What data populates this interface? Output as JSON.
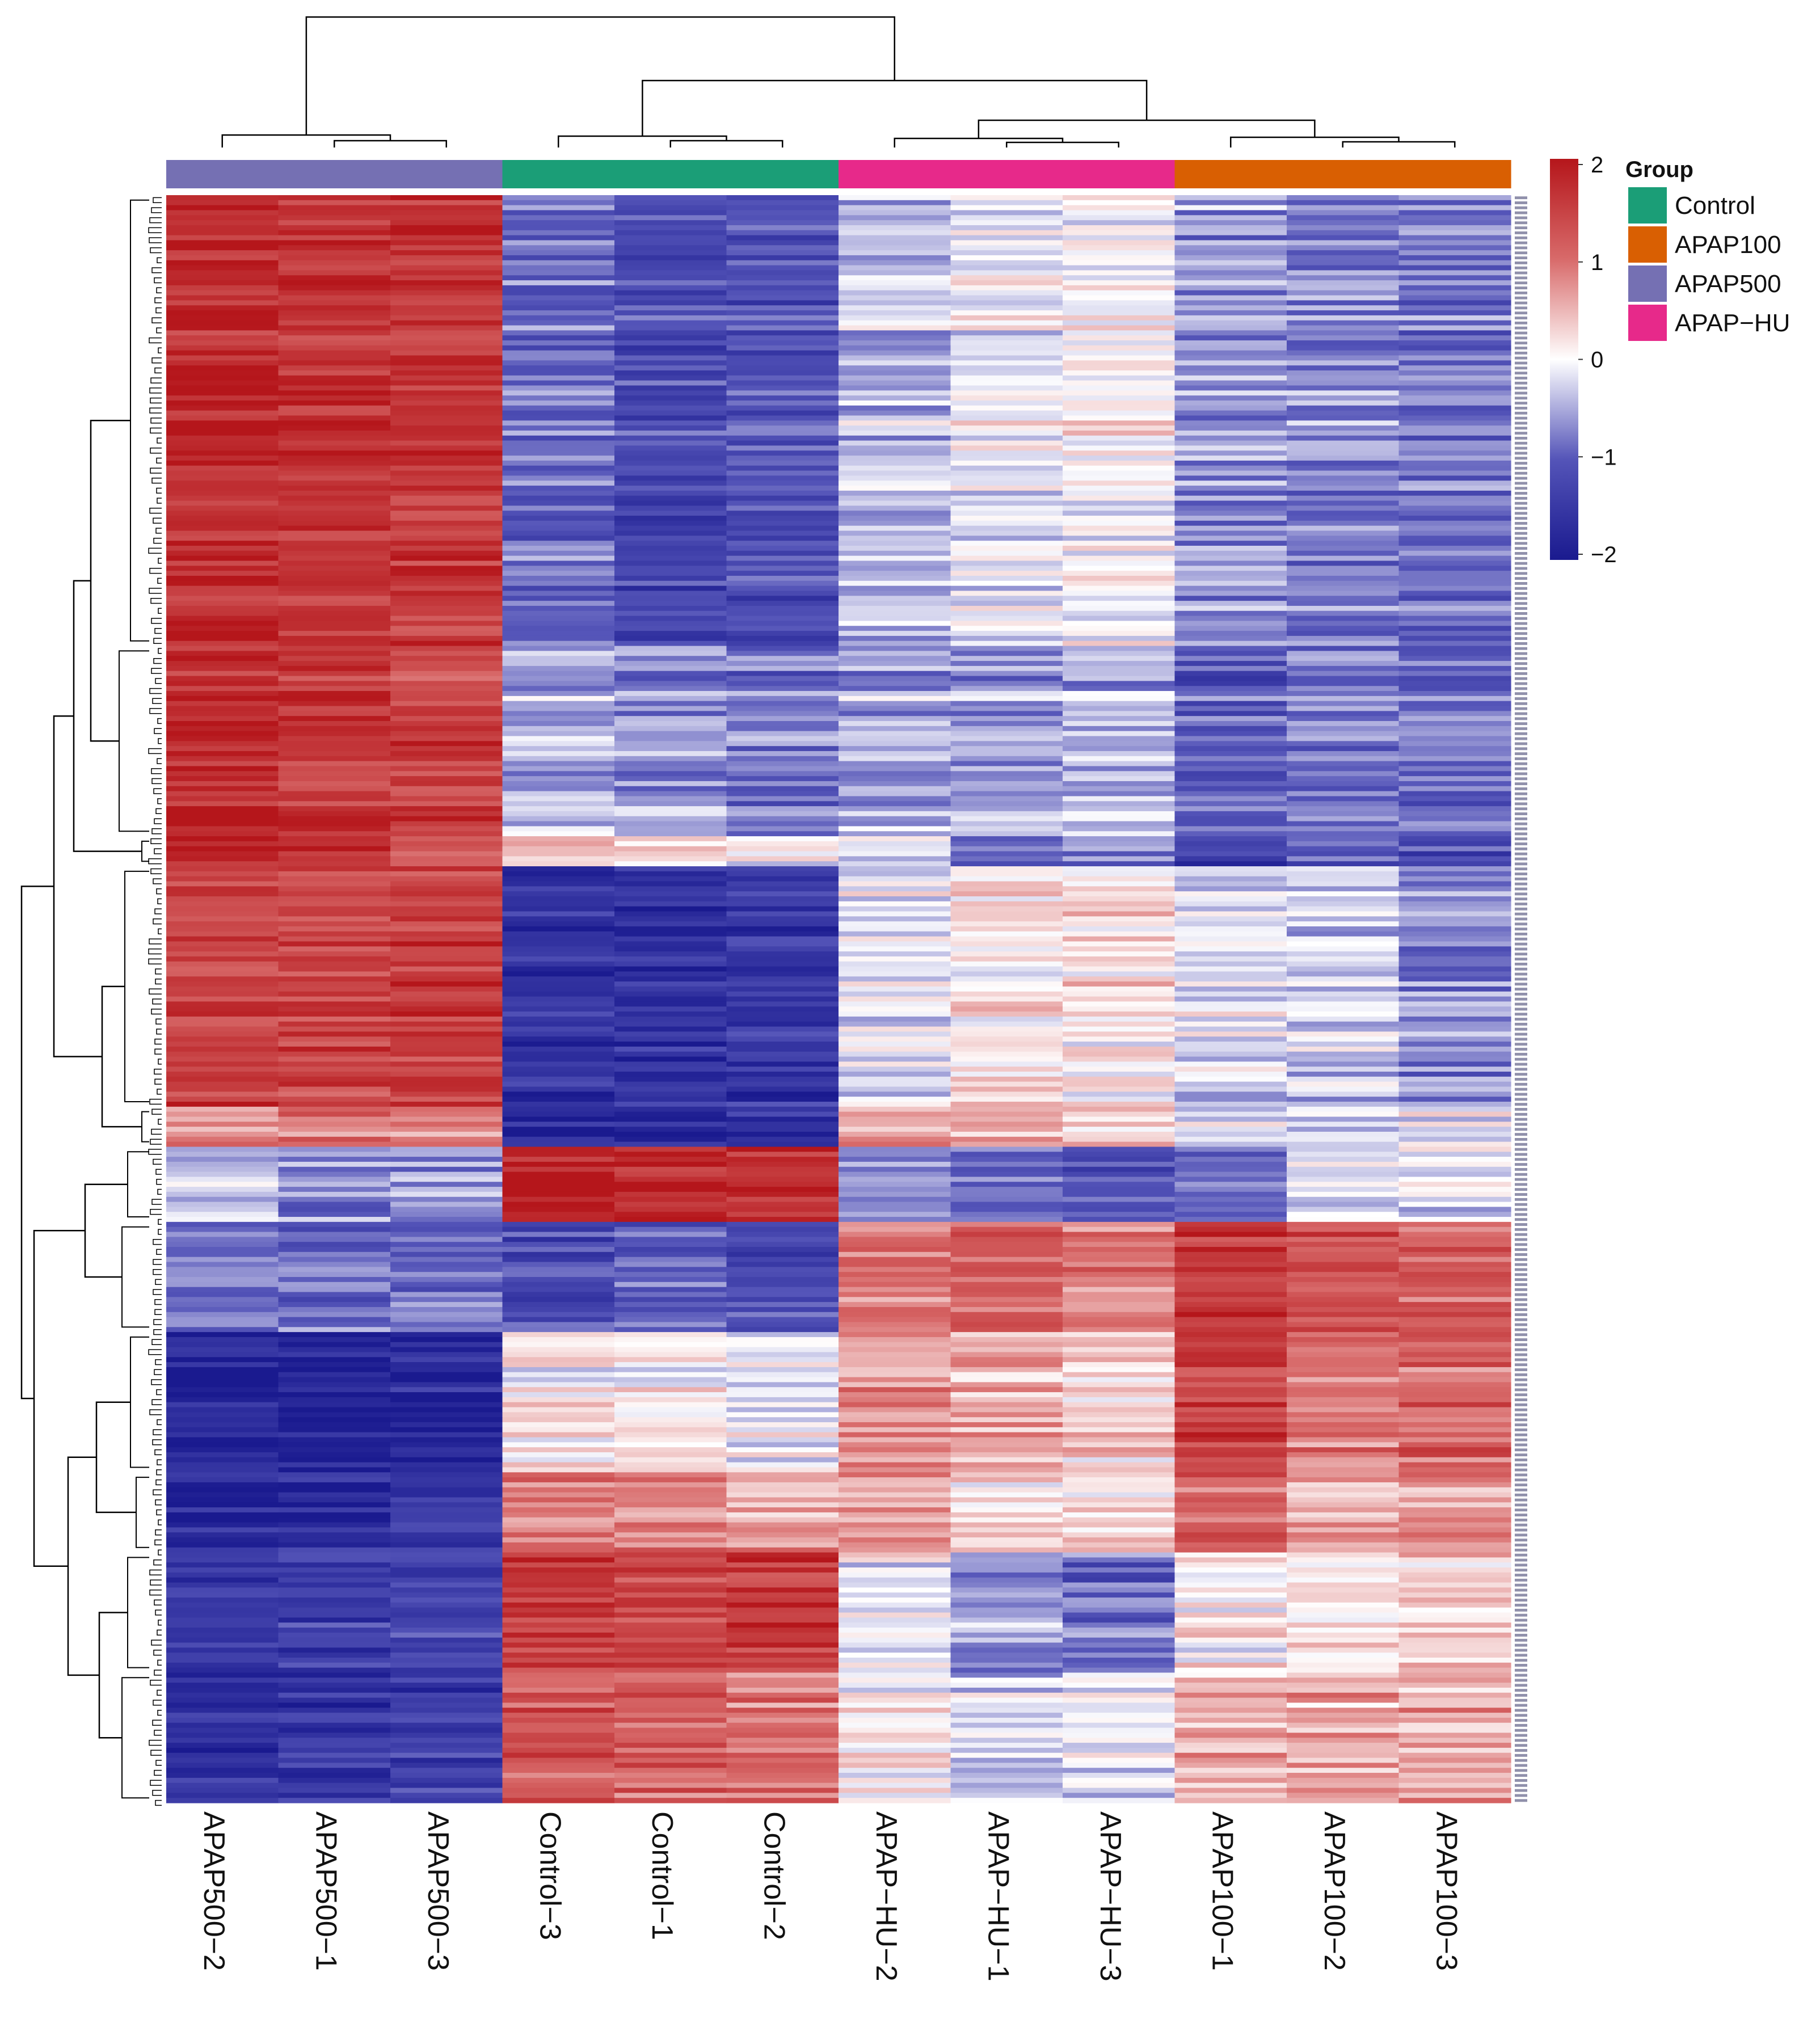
{
  "chart_data": {
    "type": "heatmap",
    "title": "",
    "columns": [
      "APAP500−2",
      "APAP500−1",
      "APAP500−3",
      "Control−3",
      "Control−1",
      "Control−2",
      "APAP−HU−2",
      "APAP−HU−1",
      "APAP−HU−3",
      "APAP100−1",
      "APAP100−2",
      "APAP100−3"
    ],
    "column_groups": [
      "APAP500",
      "APAP500",
      "APAP500",
      "Control",
      "Control",
      "Control",
      "APAP−HU",
      "APAP−HU",
      "APAP−HU",
      "APAP100",
      "APAP100",
      "APAP100"
    ],
    "row_blocks": [
      {
        "rows": 90,
        "values": [
          1.8,
          1.6,
          1.6,
          -0.9,
          -1.2,
          -1.1,
          -0.4,
          -0.1,
          0.0,
          -0.6,
          -0.7,
          -0.8
        ]
      },
      {
        "rows": 38,
        "values": [
          1.8,
          1.6,
          1.5,
          -0.5,
          -0.6,
          -0.8,
          -0.5,
          -0.6,
          -0.4,
          -1.0,
          -0.8,
          -0.8
        ]
      },
      {
        "rows": 6,
        "values": [
          1.6,
          1.5,
          1.3,
          0.4,
          0.3,
          0.1,
          -0.3,
          -0.9,
          -0.8,
          -1.3,
          -1.0,
          -1.2
        ]
      },
      {
        "rows": 48,
        "values": [
          1.5,
          1.4,
          1.5,
          -1.5,
          -1.6,
          -1.5,
          -0.1,
          0.2,
          0.2,
          -0.2,
          -0.3,
          -0.7
        ]
      },
      {
        "rows": 8,
        "values": [
          0.7,
          0.9,
          0.8,
          -1.8,
          -1.9,
          -1.7,
          0.5,
          0.5,
          0.3,
          -0.3,
          -0.2,
          -0.2
        ]
      },
      {
        "rows": 15,
        "values": [
          -0.4,
          -0.7,
          -0.7,
          1.8,
          1.7,
          1.6,
          -0.6,
          -1.0,
          -1.0,
          -0.9,
          -0.3,
          -0.2
        ]
      },
      {
        "rows": 22,
        "values": [
          -0.8,
          -0.8,
          -0.8,
          -1.2,
          -1.0,
          -1.2,
          1.0,
          1.1,
          0.9,
          1.6,
          1.3,
          1.2
        ]
      },
      {
        "rows": 28,
        "values": [
          -1.9,
          -1.8,
          -1.7,
          0.1,
          0.1,
          -0.1,
          0.7,
          0.5,
          0.3,
          1.5,
          0.9,
          1.1
        ]
      },
      {
        "rows": 16,
        "values": [
          -1.7,
          -1.7,
          -1.5,
          0.9,
          0.8,
          0.7,
          0.6,
          0.3,
          0.2,
          1.1,
          0.6,
          0.7
        ]
      },
      {
        "rows": 24,
        "values": [
          -1.5,
          -1.4,
          -1.3,
          1.5,
          1.4,
          1.6,
          -0.1,
          -0.6,
          -0.9,
          0.1,
          0.2,
          0.3
        ]
      },
      {
        "rows": 26,
        "values": [
          -1.6,
          -1.5,
          -1.4,
          1.2,
          1.1,
          1.0,
          0.1,
          -0.3,
          -0.2,
          0.5,
          0.6,
          0.6
        ]
      }
    ],
    "color_scale": {
      "min": -2,
      "max": 2,
      "stops": [
        "#1a1a8f",
        "#5454b8",
        "#ffffff",
        "#d86a6a",
        "#b5161b"
      ],
      "ticks": [
        "2",
        "1",
        "0",
        "−1",
        "−2"
      ],
      "tick_values": [
        2,
        1,
        0,
        -1,
        -2
      ]
    },
    "legend": {
      "title": "Group",
      "entries": [
        {
          "label": "Control",
          "color": "#1b9e77"
        },
        {
          "label": "APAP100",
          "color": "#d95f02"
        },
        {
          "label": "APAP500",
          "color": "#7570b3"
        },
        {
          "label": "APAP−HU",
          "color": "#e7298a"
        }
      ]
    },
    "dendrogram": {
      "columns": "hierarchical clustering of samples",
      "rows": "hierarchical clustering of genes"
    }
  }
}
